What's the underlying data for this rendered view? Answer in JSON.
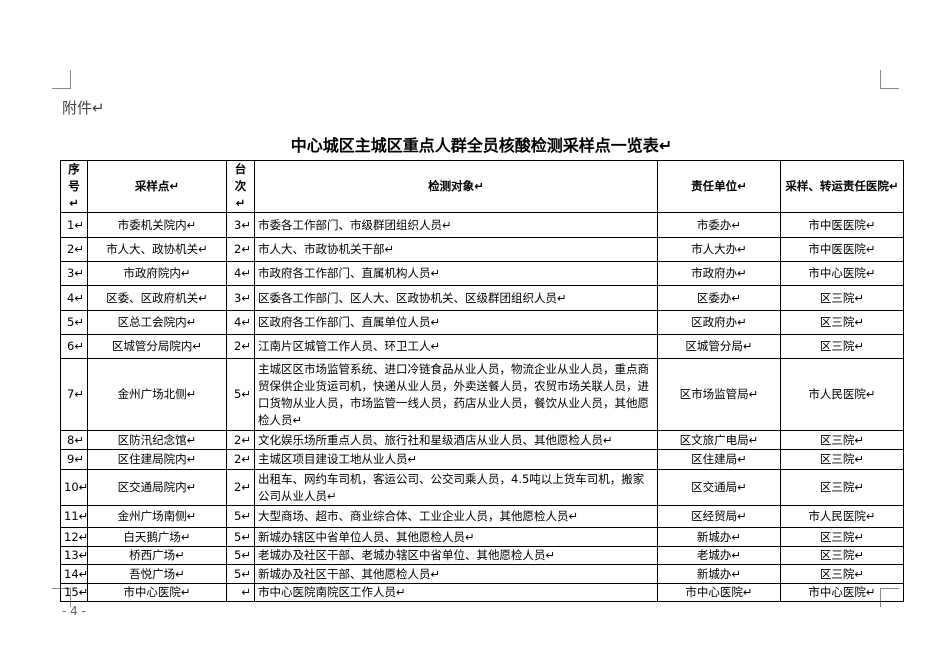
{
  "header": {
    "attachment": "附件↵",
    "title": "中心城区主城区重点人群全员核酸检测采样点一览表↵"
  },
  "table": {
    "columns": [
      "序号↵",
      "采样点↵",
      "台次↵",
      "检测对象↵",
      "责任单位↵",
      "采样、转运责任医院↵"
    ],
    "rows": [
      [
        "1↵",
        "市委机关院内↵",
        "3↵",
        "市委各工作部门、市级群团组织人员↵",
        "市委办↵",
        "市中医医院↵"
      ],
      [
        "2↵",
        "市人大、政协机关↵",
        "2↵",
        "市人大、市政协机关干部↵",
        "市人大办↵",
        "市中医医院↵"
      ],
      [
        "3↵",
        "市政府院内↵",
        "4↵",
        "市政府各工作部门、直属机构人员↵",
        "市政府办↵",
        "市中心医院↵"
      ],
      [
        "4↵",
        "区委、区政府机关↵",
        "3↵",
        "区委各工作部门、区人大、区政协机关、区级群团组织人员↵",
        "区委办↵",
        "区三院↵"
      ],
      [
        "5↵",
        "区总工会院内↵",
        "4↵",
        "区政府各工作部门、直属单位人员↵",
        "区政府办↵",
        "区三院↵"
      ],
      [
        "6↵",
        "区城管分局院内↵",
        "2↵",
        "江南片区城管工作人员、环卫工人↵",
        "区城管分局↵",
        "区三院↵"
      ],
      [
        "7↵",
        "金州广场北侧↵",
        "5↵",
        "主城区区市场监管系统、进口冷链食品从业人员，物流企业从业人员，重点商贸保供企业货运司机，快递从业人员，外卖送餐人员，农贸市场关联人员，进口货物从业人员，市场监管一线人员，药店从业人员，餐饮从业人员，其他愿检人员↵",
        "区市场监管局↵",
        "市人民医院↵"
      ],
      [
        "8↵",
        "区防汛纪念馆↵",
        "2↵",
        "文化娱乐场所重点人员、旅行社和星级酒店从业人员、其他愿检人员↵",
        "区文旅广电局↵",
        "区三院↵"
      ],
      [
        "9↵",
        "区住建局院内↵",
        "2↵",
        "主城区项目建设工地从业人员↵",
        "区住建局↵",
        "区三院↵"
      ],
      [
        "10↵",
        "区交通局院内↵",
        "2↵",
        "出租车、网约车司机，客运公司、公交司乘人员，4.5吨以上货车司机，搬家公司从业人员↵",
        "区交通局↵",
        "区三院↵"
      ],
      [
        "11↵",
        "金州广场南侧↵",
        "5↵",
        "大型商场、超市、商业综合体、工业企业人员，其他愿检人员↵",
        "区经贸局↵",
        "市人民医院↵"
      ],
      [
        "12↵",
        "白天鹅广场↵",
        "5↵",
        "新城办辖区中省单位人员、其他愿检人员↵",
        "新城办↵",
        "区三院↵"
      ],
      [
        "13↵",
        "桥西广场↵",
        "5↵",
        "老城办及社区干部、老城办辖区中省单位、其他愿检人员↵",
        "老城办↵",
        "区三院↵"
      ],
      [
        "14↵",
        "吾悦广场↵",
        "5↵",
        "新城办及社区干部、其他愿检人员↵",
        "新城办↵",
        "区三院↵"
      ],
      [
        "15↵",
        "市中心医院↵",
        "↵",
        "市中心医院南院区工作人员↵",
        "市中心医院↵",
        "市中心医院↵"
      ]
    ]
  },
  "footer": {
    "page_number": "- 4 -"
  }
}
